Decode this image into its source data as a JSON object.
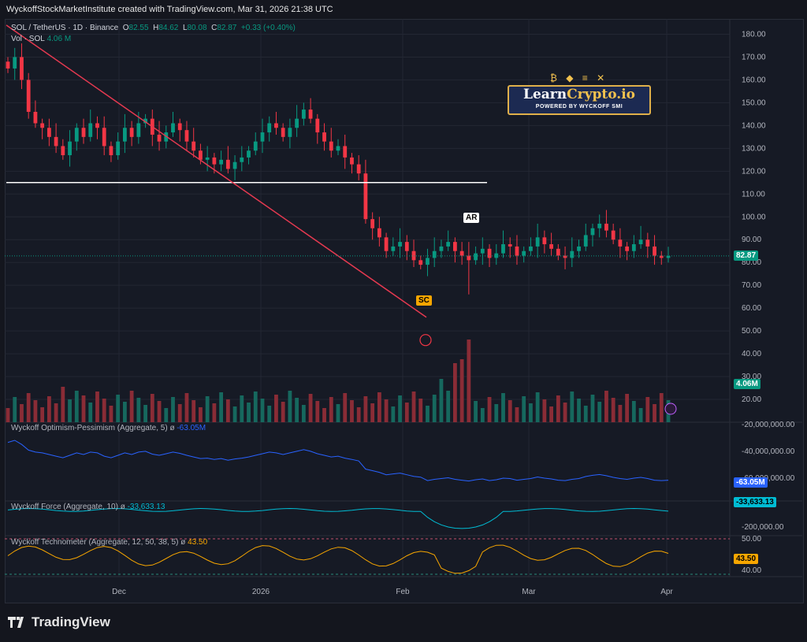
{
  "header": "WyckoffStockMarketInstitute created with TradingView.com, Mar 31, 2026 21:38 UTC",
  "legend": {
    "symbol": "SOL / TetherUS · 1D · Binance",
    "o_label": "O",
    "o": "82.55",
    "h_label": "H",
    "h": "84.62",
    "l_label": "L",
    "l": "80.08",
    "c_label": "C",
    "c": "82.87",
    "change": "+0.33 (+0.40%)",
    "vol_label": "Vol · SOL",
    "vol": "4.06 M"
  },
  "indicators": {
    "optimism": {
      "name": "Wyckoff Optimism-Pessimism (Aggregate, 5)",
      "icon": "eye-off-icon",
      "value": "-63.05M"
    },
    "force": {
      "name": "Wyckoff Force (Aggregate, 10)",
      "icon": "eye-off-icon",
      "value": "-33,633.13"
    },
    "techno": {
      "name": "Wyckoff Technometer (Aggregate, 12, 50, 38, 5)",
      "icon": "eye-off-icon",
      "value": "43.50"
    }
  },
  "annotations": {
    "ar": "AR",
    "sc": "SC"
  },
  "price_badge": "82.87",
  "vol_badge": "4.06M",
  "op_badge": "-63.05M",
  "force_badge": "-33,633.13",
  "techno_badge": "43.50",
  "logo": {
    "title_a": "Learn",
    "title_b": "Crypto.io",
    "subtitle": "POWERED BY WYCKOFF SMI",
    "icons": "₿ ◆ ≡ ✕"
  },
  "brand": "TradingView",
  "colors": {
    "up": "#089981",
    "down": "#f23645",
    "trendline": "#e53950",
    "support": "#ffffff",
    "op_line": "#2962ff",
    "force_line": "#00bcd4",
    "techno_line": "#f7a600"
  },
  "chart_data": [
    {
      "type": "candlestick",
      "title": "SOL / TetherUS · 1D · Binance",
      "x_ticks": [
        "Dec",
        "2026",
        "Feb",
        "Mar",
        "Apr"
      ],
      "y_ticks": [
        20,
        30,
        40,
        50,
        60,
        70,
        80,
        90,
        100,
        110,
        120,
        130,
        140,
        150,
        160,
        170,
        180
      ],
      "ylim": [
        10,
        185
      ],
      "close_series": [
        165,
        170,
        160,
        146,
        141,
        139,
        135,
        131,
        127,
        133,
        139,
        135,
        141,
        139,
        131,
        127,
        133,
        139,
        135,
        141,
        143,
        136,
        133,
        137,
        141,
        138,
        133,
        129,
        125,
        126,
        123,
        125,
        121,
        124,
        126,
        129,
        133,
        137,
        141,
        139,
        135,
        139,
        143,
        147,
        143,
        137,
        133,
        129,
        131,
        126,
        123,
        119,
        99,
        95,
        91,
        85,
        87,
        89,
        85,
        81,
        79,
        82,
        85,
        87,
        89,
        85,
        83,
        81,
        84,
        86,
        82,
        84,
        88,
        87,
        83,
        85,
        87,
        91,
        88,
        86,
        83,
        82,
        85,
        87,
        92,
        95,
        97,
        94,
        90,
        87,
        85,
        88,
        90,
        87,
        83,
        82,
        82.87
      ],
      "last": 82.87,
      "horizontal_line": 115,
      "trendline": {
        "from": [
          0,
          184
        ],
        "to": [
          68,
          56
        ]
      },
      "labels": [
        "AR",
        "SC"
      ]
    },
    {
      "type": "bar",
      "name": "Vol · SOL",
      "last": "4.06M",
      "y_ticks": []
    },
    {
      "type": "line",
      "name": "Wyckoff Optimism-Pessimism (Aggregate, 5)",
      "y_ticks": [
        "-20,000,000.00",
        "-40,000,000.00",
        "-60,000,000.00"
      ],
      "last": "-63.05M"
    },
    {
      "type": "line",
      "name": "Wyckoff Force (Aggregate, 10)",
      "y_ticks": [
        "-200,000.00"
      ],
      "last": "-33,633.13"
    },
    {
      "type": "line",
      "name": "Wyckoff Technometer (Aggregate, 12, 50, 38, 5)",
      "y_ticks": [
        "50.00",
        "40.00"
      ],
      "last": "43.50"
    }
  ]
}
